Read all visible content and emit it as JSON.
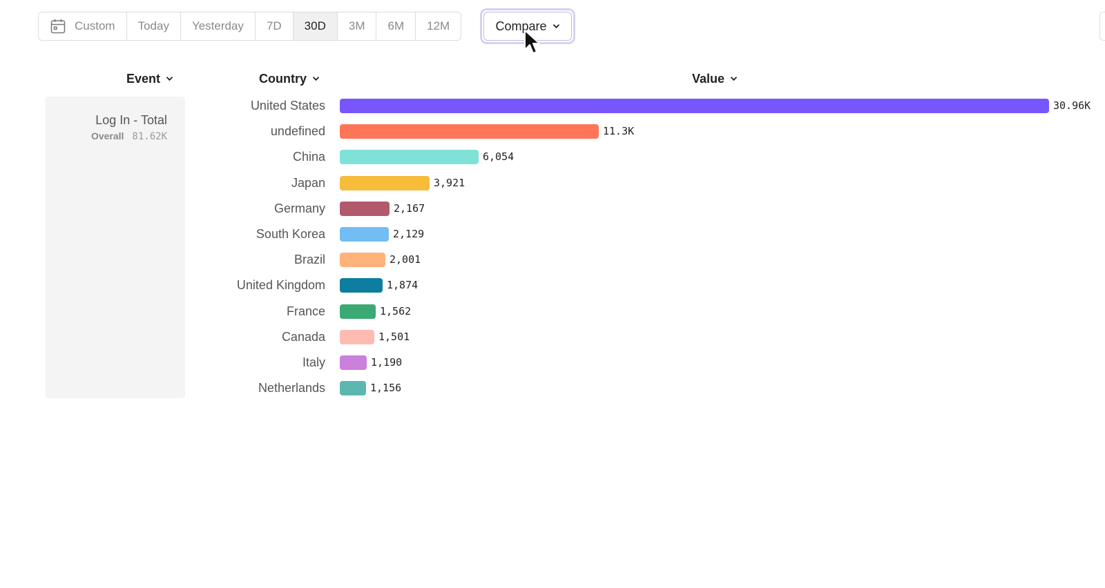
{
  "toolbar": {
    "custom_label": "Custom",
    "ranges": [
      "Today",
      "Yesterday",
      "7D",
      "30D",
      "3M",
      "6M",
      "12M"
    ],
    "active_range": "30D",
    "compare_label": "Compare"
  },
  "columns": {
    "event": "Event",
    "country": "Country",
    "value": "Value"
  },
  "event_panel": {
    "name": "Log In - Total",
    "overall_label": "Overall",
    "overall_value": "81.62K"
  },
  "chart_data": {
    "type": "bar",
    "orientation": "horizontal",
    "xlabel": "Value",
    "ylabel": "Country",
    "categories": [
      "United States",
      "undefined",
      "China",
      "Japan",
      "Germany",
      "South Korea",
      "Brazil",
      "United Kingdom",
      "France",
      "Canada",
      "Italy",
      "Netherlands"
    ],
    "values": [
      30960,
      11300,
      6054,
      3921,
      2167,
      2129,
      2001,
      1874,
      1562,
      1501,
      1190,
      1156
    ],
    "value_labels": [
      "30.96K",
      "11.3K",
      "6,054",
      "3,921",
      "2,167",
      "2,129",
      "2,001",
      "1,874",
      "1,562",
      "1,501",
      "1,190",
      "1,156"
    ],
    "colors": [
      "#7856ff",
      "#ff7557",
      "#80e1d9",
      "#f8bc3b",
      "#b2596e",
      "#72bef4",
      "#ffb27a",
      "#0d7ea0",
      "#3ba974",
      "#febbb2",
      "#cb80dc",
      "#5cb7af"
    ]
  }
}
